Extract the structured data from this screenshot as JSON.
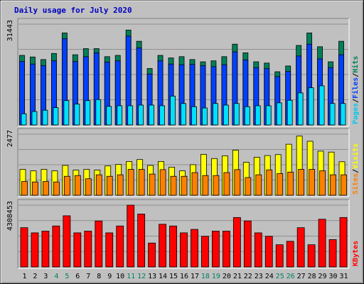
{
  "chart_data": [
    {
      "type": "bar",
      "title": "Daily usage for July 2020",
      "panel": "top",
      "ymax_label": "31443",
      "ylim": [
        0,
        31443
      ],
      "right_label": [
        "Pages",
        "/",
        "Files",
        "/",
        "Hits"
      ],
      "right_label_colors": [
        "#00c8f0",
        "#000000",
        "#0040ff",
        "#000000",
        "#00805a"
      ],
      "categories": [
        "1",
        "2",
        "3",
        "4",
        "5",
        "6",
        "7",
        "8",
        "9",
        "10",
        "11",
        "12",
        "13",
        "14",
        "15",
        "16",
        "17",
        "18",
        "19",
        "20",
        "21",
        "22",
        "23",
        "24",
        "25",
        "26",
        "27",
        "28",
        "29",
        "30",
        "31"
      ],
      "series": [
        {
          "name": "Hits",
          "color": "#00805a",
          "values": [
            21700,
            21200,
            20400,
            22300,
            28700,
            21900,
            23800,
            23800,
            21300,
            21700,
            29600,
            26100,
            17600,
            21700,
            20900,
            21300,
            20400,
            19700,
            20000,
            21300,
            25200,
            22500,
            19700,
            19300,
            16600,
            18400,
            24800,
            28700,
            24400,
            19700,
            26100
          ]
        },
        {
          "name": "Files",
          "color": "#0040ff",
          "values": [
            19800,
            19000,
            18500,
            20000,
            26900,
            19800,
            21300,
            22500,
            19600,
            20000,
            27700,
            24000,
            15900,
            20000,
            19000,
            18800,
            18900,
            18500,
            18200,
            18800,
            22800,
            20300,
            17900,
            17600,
            15100,
            16700,
            21500,
            25200,
            20600,
            17900,
            21900
          ]
        },
        {
          "name": "Pages",
          "color": "#00e0ff",
          "values": [
            3500,
            4200,
            4600,
            5400,
            7600,
            6500,
            7600,
            7900,
            5800,
            6000,
            6000,
            6200,
            6200,
            6000,
            9000,
            6700,
            5700,
            5300,
            6700,
            6200,
            6700,
            5700,
            6000,
            6000,
            6900,
            7700,
            10000,
            11600,
            12200,
            6700,
            6700
          ]
        }
      ]
    },
    {
      "type": "bar",
      "panel": "middle",
      "ymax_label": "2477",
      "ylim": [
        0,
        2477
      ],
      "right_label": [
        "Sites",
        "/",
        "Visits"
      ],
      "right_label_colors": [
        "#ff8000",
        "#000000",
        "#ffff00"
      ],
      "categories": [
        "1",
        "2",
        "3",
        "4",
        "5",
        "6",
        "7",
        "8",
        "9",
        "10",
        "11",
        "12",
        "13",
        "14",
        "15",
        "16",
        "17",
        "18",
        "19",
        "20",
        "21",
        "22",
        "23",
        "24",
        "25",
        "26",
        "27",
        "28",
        "29",
        "30",
        "31"
      ],
      "series": [
        {
          "name": "Visits",
          "color": "#ffff00",
          "values": [
            1050,
            990,
            1050,
            990,
            1210,
            1020,
            1050,
            1020,
            1190,
            1250,
            1370,
            1450,
            1210,
            1370,
            1140,
            990,
            1240,
            1660,
            1490,
            1600,
            1830,
            1340,
            1540,
            1610,
            1650,
            2070,
            2400,
            2190,
            1790,
            1750,
            1360
          ]
        },
        {
          "name": "Sites",
          "color": "#ff8000",
          "values": [
            560,
            540,
            560,
            540,
            770,
            800,
            670,
            830,
            770,
            830,
            1050,
            1050,
            860,
            1040,
            770,
            770,
            920,
            800,
            800,
            920,
            1040,
            720,
            830,
            1030,
            880,
            940,
            1050,
            1050,
            990,
            830,
            830
          ]
        }
      ]
    },
    {
      "type": "bar",
      "panel": "bottom",
      "ymax_label": "4308453",
      "ylim": [
        0,
        4308453
      ],
      "right_label": [
        "KBytes"
      ],
      "right_label_colors": [
        "#ff0000"
      ],
      "categories": [
        "1",
        "2",
        "3",
        "4",
        "5",
        "6",
        "7",
        "8",
        "9",
        "10",
        "11",
        "12",
        "13",
        "14",
        "15",
        "16",
        "17",
        "18",
        "19",
        "20",
        "21",
        "22",
        "23",
        "24",
        "25",
        "26",
        "27",
        "28",
        "29",
        "30",
        "31"
      ],
      "xtick_colors": [
        "#000000",
        "#000000",
        "#000000",
        "#008060",
        "#008060",
        "#000000",
        "#000000",
        "#000000",
        "#000000",
        "#000000",
        "#008060",
        "#008060",
        "#000000",
        "#000000",
        "#000000",
        "#000000",
        "#000000",
        "#008060",
        "#008060",
        "#000000",
        "#000000",
        "#000000",
        "#000000",
        "#000000",
        "#008060",
        "#008060",
        "#000000",
        "#000000",
        "#000000",
        "#000000",
        "#000000"
      ],
      "series": [
        {
          "name": "KBytes",
          "color": "#ff0000",
          "values": [
            2740,
            2380,
            2500,
            2860,
            3570,
            2380,
            2500,
            3210,
            2380,
            2860,
            4310,
            3690,
            1670,
            2980,
            2860,
            2380,
            2620,
            2140,
            2500,
            2500,
            3450,
            3210,
            2380,
            2140,
            1550,
            1790,
            2740,
            1550,
            3330,
            1910,
            3450
          ]
        }
      ]
    }
  ]
}
